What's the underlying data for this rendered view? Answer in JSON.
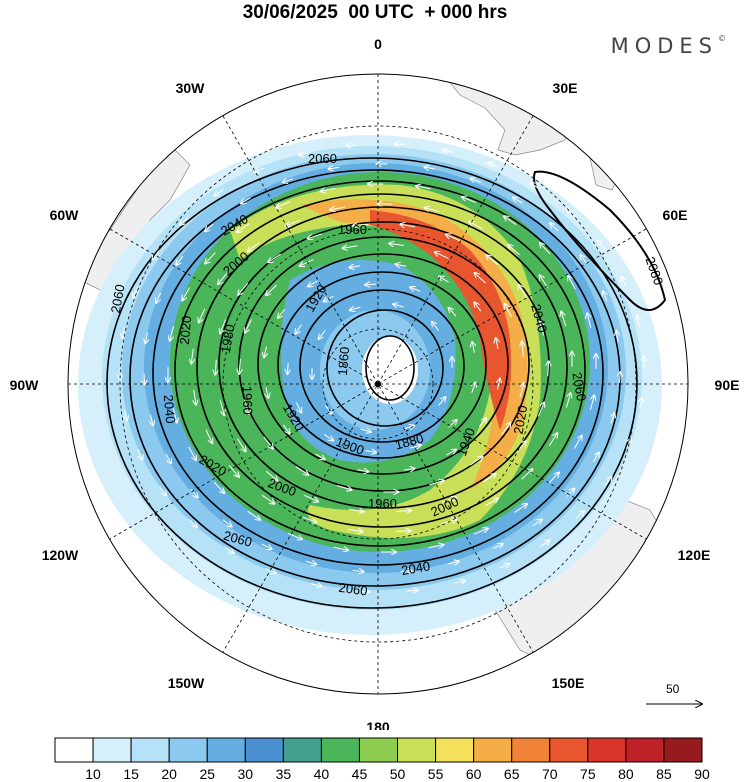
{
  "title": "30/06/2025  00 UTC  + 000 hrs",
  "brand": "MODES",
  "brand_mark": "©",
  "longitude_labels": {
    "n0": "0",
    "n30e": "30E",
    "n60e": "60E",
    "n90e": "90E",
    "n120e": "120E",
    "n150e": "150E",
    "n180": "180",
    "n150w": "150W",
    "n120w": "120W",
    "n90w": "90W",
    "n60w": "60W",
    "n30w": "30W"
  },
  "contour_labels": [
    "2080",
    "2060",
    "2060",
    "2060",
    "2060",
    "2060",
    "2040",
    "2040",
    "2040",
    "2040",
    "2020",
    "2020",
    "2020",
    "2000",
    "2000",
    "2000",
    "1980",
    "1960",
    "1960",
    "1960",
    "1940",
    "1920",
    "1920",
    "1900",
    "1880",
    "1860",
    "1840"
  ],
  "vector_reference": "50",
  "colorbar": {
    "ticks": [
      "10",
      "15",
      "20",
      "25",
      "30",
      "35",
      "40",
      "45",
      "50",
      "55",
      "60",
      "65",
      "70",
      "75",
      "80",
      "85",
      "90"
    ],
    "colors": [
      "#ffffff",
      "#d6f0fb",
      "#b5e2f6",
      "#8cc9ef",
      "#64aee2",
      "#4a8fcf",
      "#43a08e",
      "#4bb55a",
      "#8ccc4e",
      "#c9df57",
      "#f4e05a",
      "#f5ae47",
      "#f08338",
      "#e8562f",
      "#d9352b",
      "#bf2128",
      "#961b1e"
    ]
  }
}
